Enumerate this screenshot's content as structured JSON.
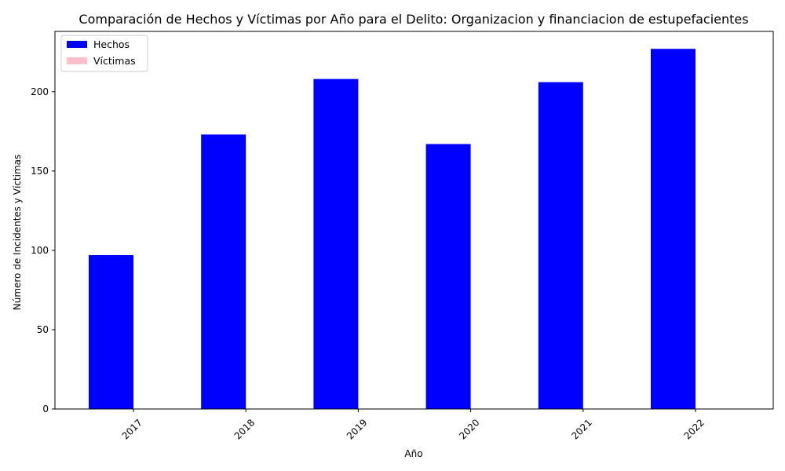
{
  "chart_data": {
    "type": "bar",
    "title": "Comparación de Hechos y Víctimas por Año para el Delito: Organizacion y financiacion de estupefacientes",
    "xlabel": "Año",
    "ylabel": "Número de Incidentes y Víctimas",
    "categories": [
      "2017",
      "2018",
      "2019",
      "2020",
      "2021",
      "2022"
    ],
    "series": [
      {
        "name": "Hechos",
        "color": "#0000ff",
        "values": [
          97,
          173,
          208,
          167,
          206,
          227
        ]
      },
      {
        "name": "Víctimas",
        "color": "#ffc0cb",
        "values": [
          0,
          0,
          0,
          0,
          0,
          0
        ]
      }
    ],
    "ylim": [
      0,
      238
    ],
    "yticks": [
      0,
      50,
      100,
      150,
      200
    ],
    "legend": "top-left",
    "grid": false
  }
}
